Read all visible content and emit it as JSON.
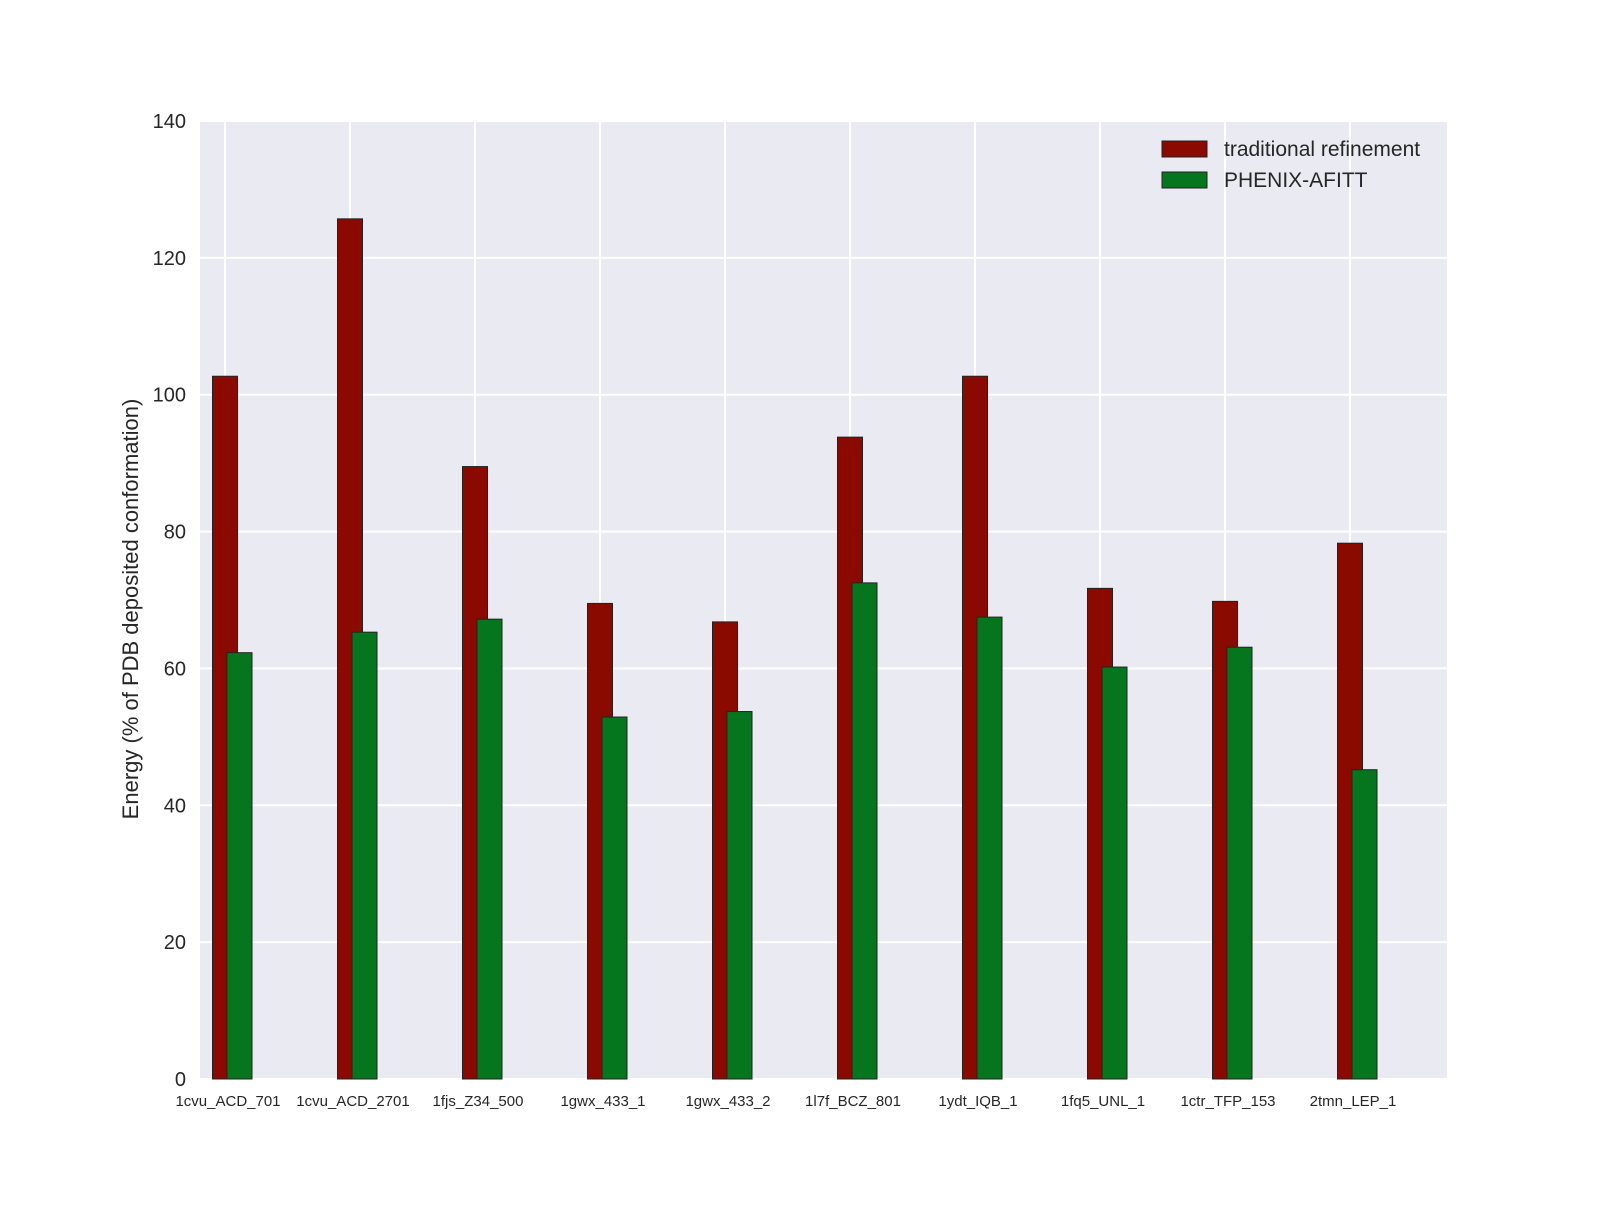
{
  "chart_data": {
    "type": "bar",
    "title": "",
    "xlabel": "",
    "ylabel": "Energy (% of PDB deposited conformation)",
    "ylim": [
      0,
      140
    ],
    "yticks": [
      0,
      20,
      40,
      60,
      80,
      100,
      120,
      140
    ],
    "grid": true,
    "legend_position": "top-right",
    "categories": [
      "1cvu_ACD_701",
      "1cvu_ACD_2701",
      "1fjs_Z34_500",
      "1gwx_433_1",
      "1gwx_433_2",
      "1l7f_BCZ_801",
      "1ydt_IQB_1",
      "1fq5_UNL_1",
      "1ctr_TFP_153",
      "2tmn_LEP_1"
    ],
    "series": [
      {
        "name": "traditional refinement",
        "color": "#8b0a00",
        "values": [
          102.7,
          125.7,
          89.5,
          69.5,
          66.8,
          93.8,
          102.7,
          71.7,
          69.8,
          78.3
        ]
      },
      {
        "name": "PHENIX-AFITT",
        "color": "#06761e",
        "values": [
          62.3,
          65.3,
          67.2,
          52.9,
          53.7,
          72.5,
          67.5,
          60.2,
          63.1,
          45.2
        ]
      }
    ],
    "background_color": "#eaeaf2"
  }
}
